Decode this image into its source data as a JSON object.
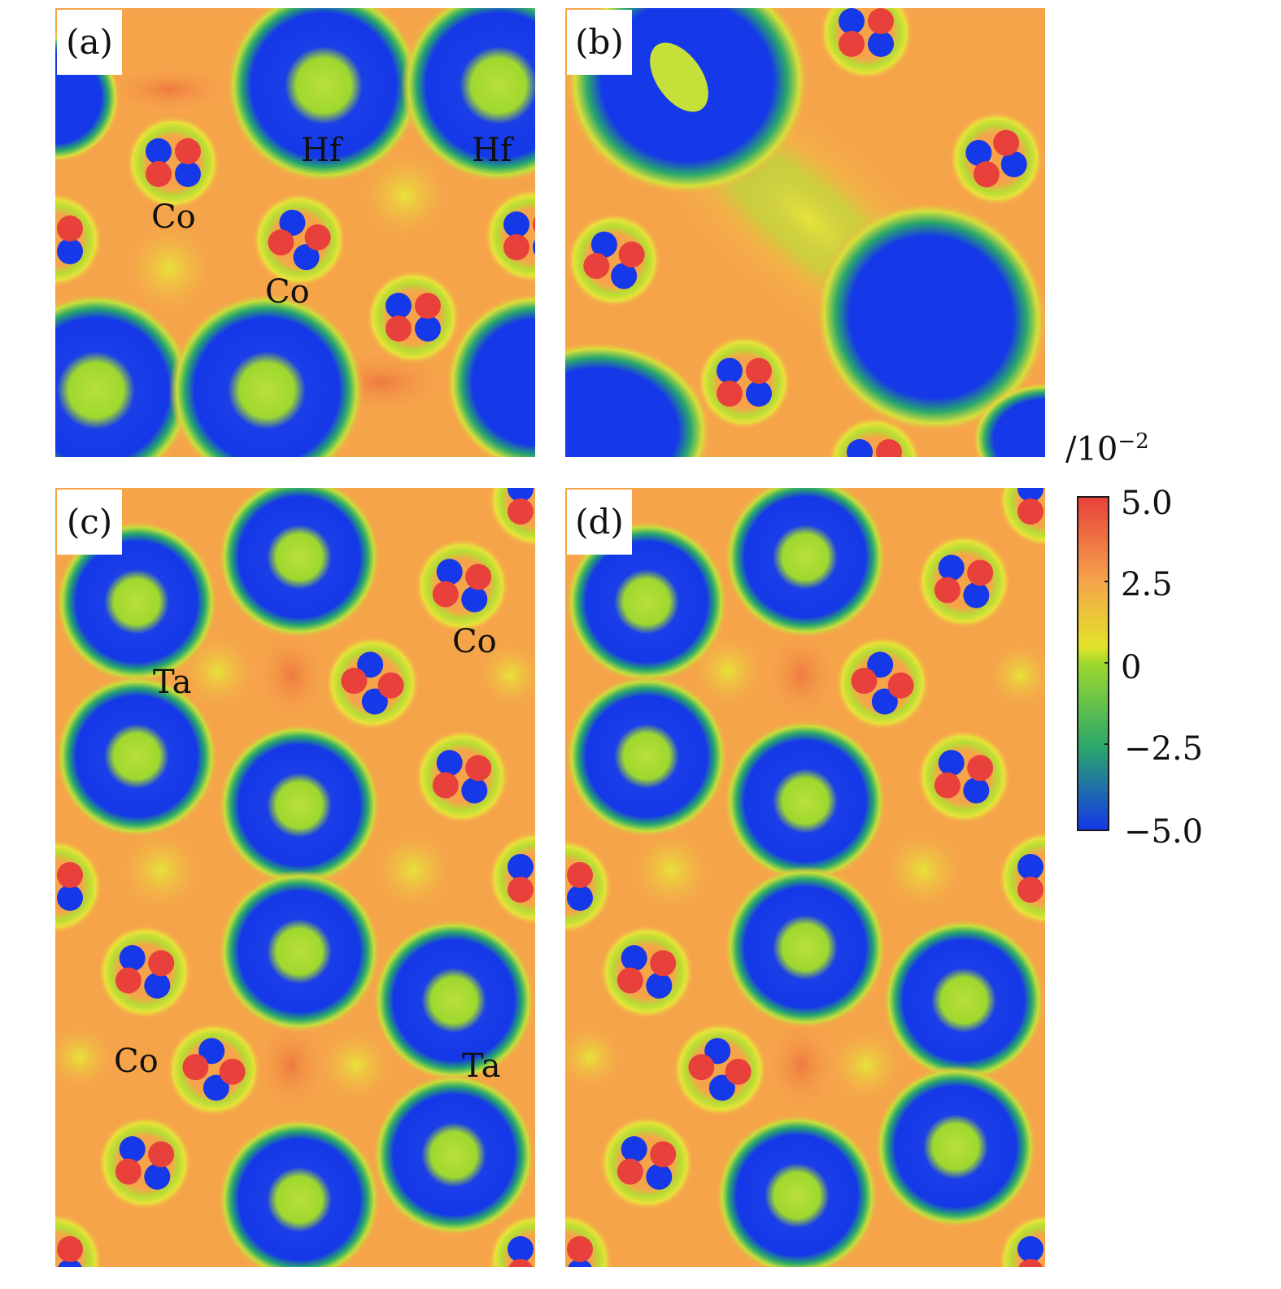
{
  "panels": {
    "a": {
      "label": "(a)",
      "atoms": [
        "Hf",
        "Hf",
        "Co",
        "Co"
      ]
    },
    "b": {
      "label": "(b)"
    },
    "c": {
      "label": "(c)",
      "atoms": [
        "Co",
        "Ta",
        "Co",
        "Ta"
      ]
    },
    "d": {
      "label": "(d)"
    }
  },
  "colorbar": {
    "unit_base": "/10",
    "unit_exp": "−2",
    "ticks": [
      "5.0",
      "2.5",
      "0",
      "−2.5",
      "−5.0"
    ],
    "colors": {
      "max": "#e8413b",
      "mid_high": "#f5a44a",
      "zero": "#9ed82e",
      "mid_low": "#2aa86a",
      "min": "#1538e8"
    }
  }
}
